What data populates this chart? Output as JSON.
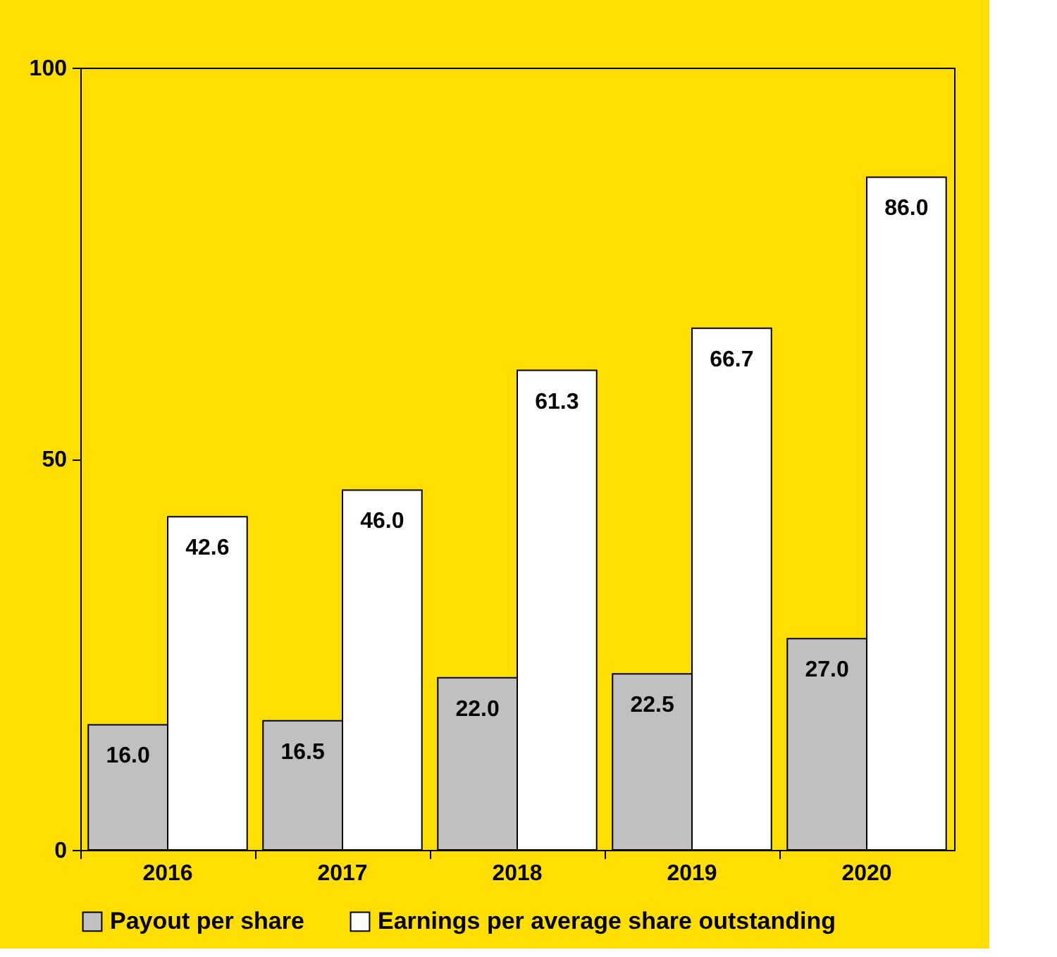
{
  "chart_data": {
    "type": "bar",
    "categories": [
      "2016",
      "2017",
      "2018",
      "2019",
      "2020"
    ],
    "series": [
      {
        "name": "Payout per share",
        "color": "#c0c0c0",
        "values": [
          16.0,
          16.5,
          22.0,
          22.5,
          27.0
        ],
        "value_labels": [
          "16.0",
          "16.5",
          "22.0",
          "22.5",
          "27.0"
        ]
      },
      {
        "name": "Earnings per average share outstanding",
        "color": "#ffffff",
        "values": [
          42.6,
          46.0,
          61.3,
          66.7,
          86.0
        ],
        "value_labels": [
          "42.6",
          "46.0",
          "61.3",
          "66.7",
          "86.0"
        ]
      }
    ],
    "ylim": [
      0,
      100
    ],
    "yticks": [
      0,
      50,
      100
    ],
    "grid": false,
    "legend": "bottom"
  }
}
